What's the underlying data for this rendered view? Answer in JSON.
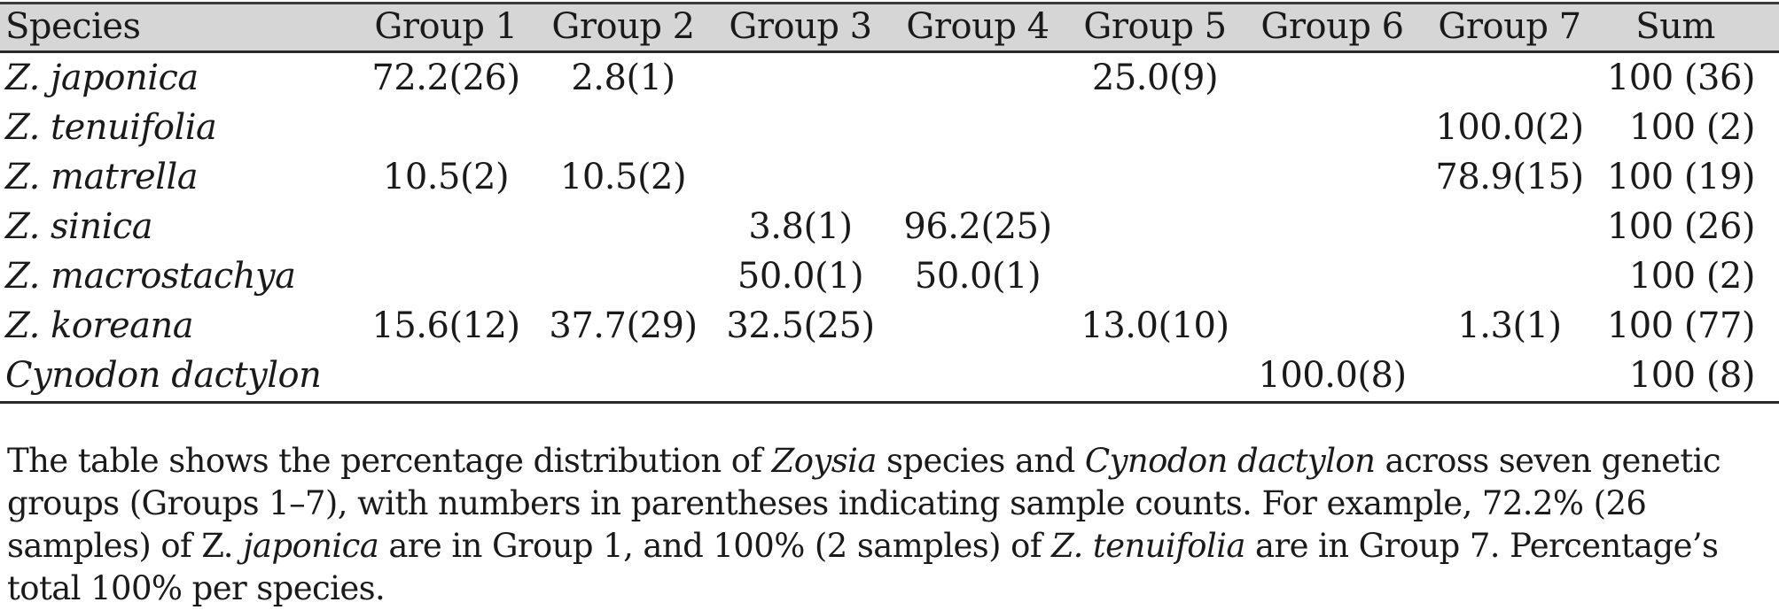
{
  "table": {
    "columns": [
      "Species",
      "Group 1",
      "Group 2",
      "Group 3",
      "Group 4",
      "Group 5",
      "Group 6",
      "Group 7",
      "Sum"
    ],
    "rows": [
      {
        "species": "Z. japonica",
        "cells": [
          "72.2(26)",
          "2.8(1)",
          "",
          "",
          "25.0(9)",
          "",
          "",
          "100 (36)"
        ]
      },
      {
        "species": "Z. tenuifolia",
        "cells": [
          "",
          "",
          "",
          "",
          "",
          "",
          "100.0(2)",
          "100 (2)"
        ]
      },
      {
        "species": "Z. matrella",
        "cells": [
          "10.5(2)",
          "10.5(2)",
          "",
          "",
          "",
          "",
          "78.9(15)",
          "100 (19)"
        ]
      },
      {
        "species": "Z. sinica",
        "cells": [
          "",
          "",
          "3.8(1)",
          "96.2(25)",
          "",
          "",
          "",
          "100 (26)"
        ]
      },
      {
        "species": "Z. macrostachya",
        "cells": [
          "",
          "",
          "50.0(1)",
          "50.0(1)",
          "",
          "",
          "",
          "100 (2)"
        ]
      },
      {
        "species": "Z. koreana",
        "cells": [
          "15.6(12)",
          "37.7(29)",
          "32.5(25)",
          "",
          "13.0(10)",
          "",
          "1.3(1)",
          "100 (77)"
        ]
      },
      {
        "species": "Cynodon dactylon",
        "cells": [
          "",
          "",
          "",
          "",
          "",
          "100.0(8)",
          "",
          "100 (8)"
        ]
      }
    ]
  },
  "caption": {
    "p1": "The table shows the percentage distribution of ",
    "i1": "Zoysia",
    "p2": " species and ",
    "i2": "Cynodon dactylon",
    "p3": " across seven genetic groups (Groups 1–7), with numbers in parentheses indicating sample counts. For example, 72.2% (26 samples) of Z. ",
    "i3": "japonica",
    "p4": " are in Group 1, and 100% (2 samples) of ",
    "i4": "Z. tenuifolia",
    "p5": " are in Group 7. Percentage’s total 100% per species."
  },
  "colors": {
    "header_background": "#d6d6d6",
    "rule": "#2a2a2a",
    "text": "#1a1a1a"
  }
}
